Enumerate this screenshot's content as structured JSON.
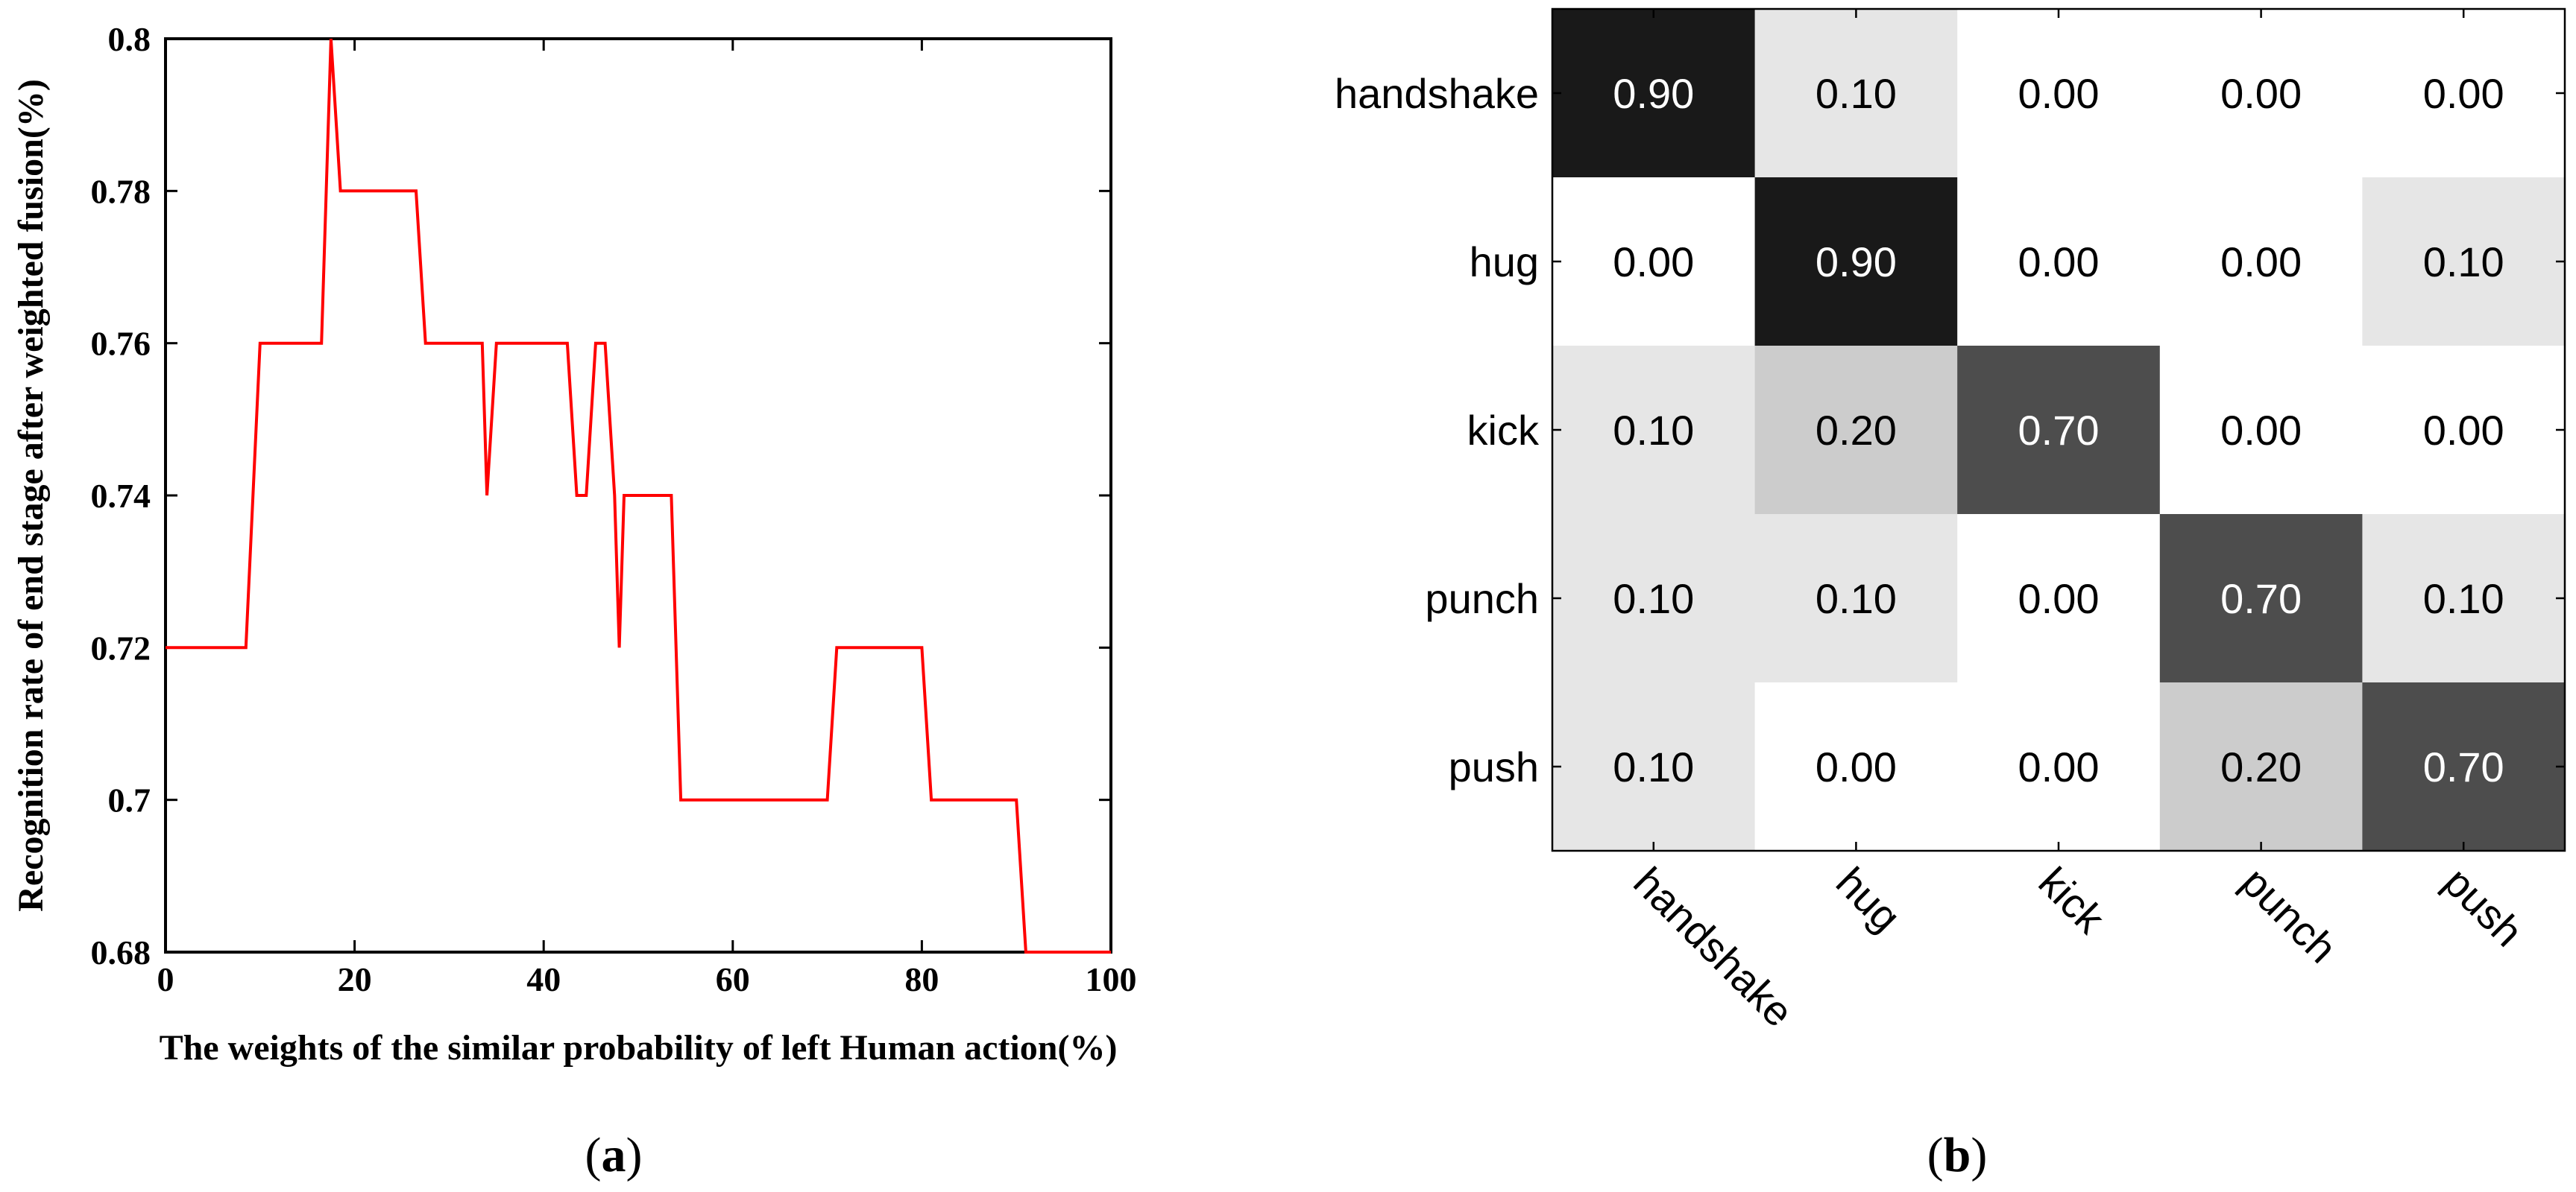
{
  "chart_data": [
    {
      "type": "line",
      "panel_label": "(a)",
      "panel_letter": "a",
      "xlabel": "The weights of the similar probability of left Human action(%)",
      "ylabel": "Recognition rate of end stage after weighted fusion(%)",
      "xlim": [
        0,
        100
      ],
      "ylim": [
        0.68,
        0.8
      ],
      "x_ticks": [
        0,
        20,
        40,
        60,
        80,
        100
      ],
      "x_tick_labels": [
        "0",
        "20",
        "40",
        "60",
        "80",
        "100"
      ],
      "y_ticks": [
        0.68,
        0.7,
        0.72,
        0.74,
        0.76,
        0.78,
        0.8
      ],
      "y_tick_labels": [
        "0.68",
        "0.7",
        "0.72",
        "0.74",
        "0.76",
        "0.78",
        "0.8"
      ],
      "grid": false,
      "line_color": "#ff0000",
      "series": [
        {
          "x": [
            0,
            8.5,
            10,
            16.5,
            17.5,
            18.5,
            26.5,
            27.5,
            33.5,
            34,
            35,
            42.5,
            43.5,
            44.5,
            45.5,
            46.5,
            47.5,
            48,
            48.5,
            49.5,
            53.5,
            54.5,
            70,
            71,
            80,
            81,
            90,
            91,
            100
          ],
          "y": [
            0.72,
            0.72,
            0.76,
            0.76,
            0.8,
            0.78,
            0.78,
            0.76,
            0.76,
            0.74,
            0.76,
            0.76,
            0.74,
            0.74,
            0.76,
            0.76,
            0.74,
            0.72,
            0.74,
            0.74,
            0.74,
            0.7,
            0.7,
            0.72,
            0.72,
            0.7,
            0.7,
            0.68,
            0.68
          ]
        }
      ]
    },
    {
      "type": "heatmap",
      "panel_label": "(b)",
      "panel_letter": "b",
      "rows": [
        "handshake",
        "hug",
        "kick",
        "punch",
        "push"
      ],
      "columns": [
        "handshake",
        "hug",
        "kick",
        "punch",
        "push"
      ],
      "values": [
        [
          0.9,
          0.1,
          0.0,
          0.0,
          0.0
        ],
        [
          0.0,
          0.9,
          0.0,
          0.0,
          0.1
        ],
        [
          0.1,
          0.2,
          0.7,
          0.0,
          0.0
        ],
        [
          0.1,
          0.1,
          0.0,
          0.7,
          0.1
        ],
        [
          0.1,
          0.0,
          0.0,
          0.2,
          0.7
        ]
      ],
      "value_labels": [
        [
          "0.90",
          "0.10",
          "0.00",
          "0.00",
          "0.00"
        ],
        [
          "0.00",
          "0.90",
          "0.00",
          "0.00",
          "0.10"
        ],
        [
          "0.10",
          "0.20",
          "0.70",
          "0.00",
          "0.00"
        ],
        [
          "0.10",
          "0.10",
          "0.00",
          "0.70",
          "0.10"
        ],
        [
          "0.10",
          "0.00",
          "0.00",
          "0.20",
          "0.70"
        ]
      ],
      "colormap": "gray-reversed",
      "grid": false
    }
  ]
}
